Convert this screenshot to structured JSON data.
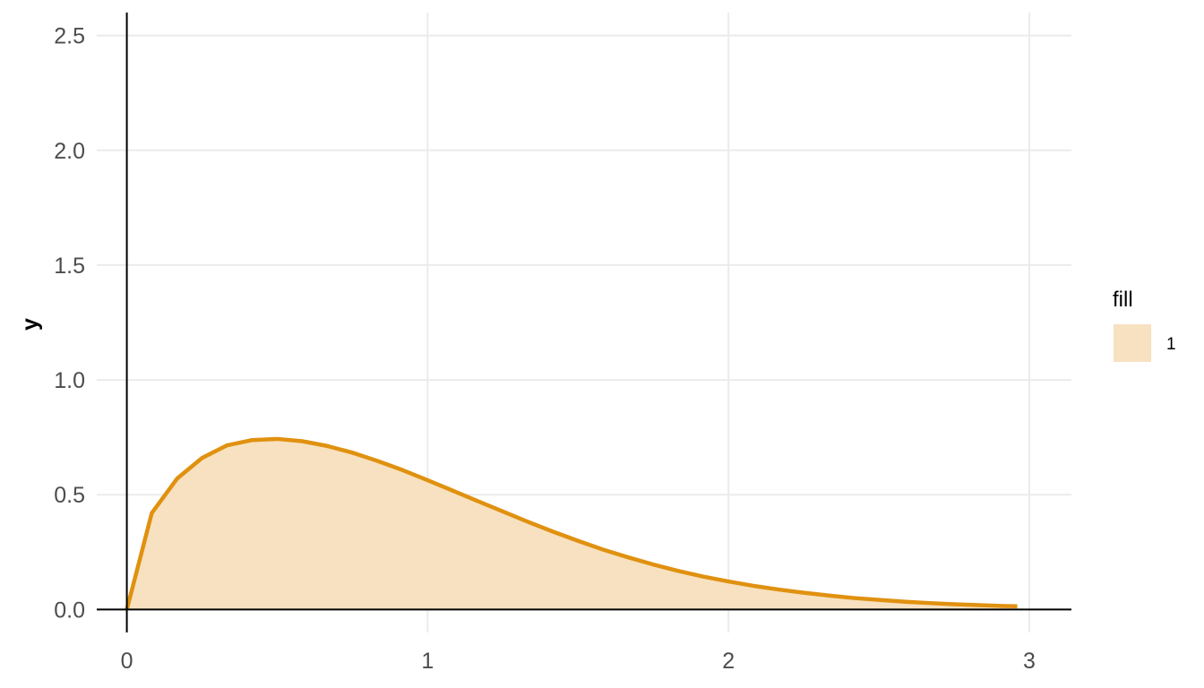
{
  "chart_data": {
    "type": "area",
    "ylabel": "y",
    "xlabel": "",
    "xlim": [
      -0.1,
      3.14
    ],
    "ylim": [
      -0.1,
      2.6
    ],
    "x_ticks": [
      0,
      1,
      2,
      3
    ],
    "x_tick_labels": [
      "0",
      "1",
      "2",
      "3"
    ],
    "y_ticks": [
      0,
      0.5,
      1,
      1.5,
      2,
      2.5
    ],
    "y_tick_labels": [
      "0.0",
      "0.5",
      "1.0",
      "1.5",
      "2.0",
      "2.5"
    ],
    "grid": true,
    "reference_lines": {
      "x": 0,
      "y": 0
    },
    "legend": {
      "title": "fill",
      "position": "right",
      "entries": [
        {
          "label": "1",
          "color": "#f7e1c0"
        }
      ]
    },
    "series": [
      {
        "name": "1",
        "line_color": "#e0910f",
        "fill_color": "#f7e1c0",
        "x": [
          0,
          0.083,
          0.167,
          0.25,
          0.333,
          0.417,
          0.5,
          0.583,
          0.667,
          0.75,
          0.833,
          0.917,
          1.0,
          1.083,
          1.167,
          1.25,
          1.333,
          1.417,
          1.5,
          1.583,
          1.667,
          1.75,
          1.833,
          1.917,
          2.0,
          2.083,
          2.167,
          2.25,
          2.333,
          2.417,
          2.5,
          2.583,
          2.667,
          2.75,
          2.833,
          2.917,
          2.96
        ],
        "y": [
          0,
          0.42,
          0.57,
          0.66,
          0.715,
          0.738,
          0.743,
          0.733,
          0.712,
          0.683,
          0.647,
          0.607,
          0.563,
          0.518,
          0.472,
          0.427,
          0.382,
          0.339,
          0.299,
          0.261,
          0.227,
          0.196,
          0.168,
          0.143,
          0.122,
          0.103,
          0.087,
          0.073,
          0.061,
          0.05,
          0.042,
          0.034,
          0.028,
          0.023,
          0.019,
          0.015,
          0.014
        ]
      }
    ]
  }
}
